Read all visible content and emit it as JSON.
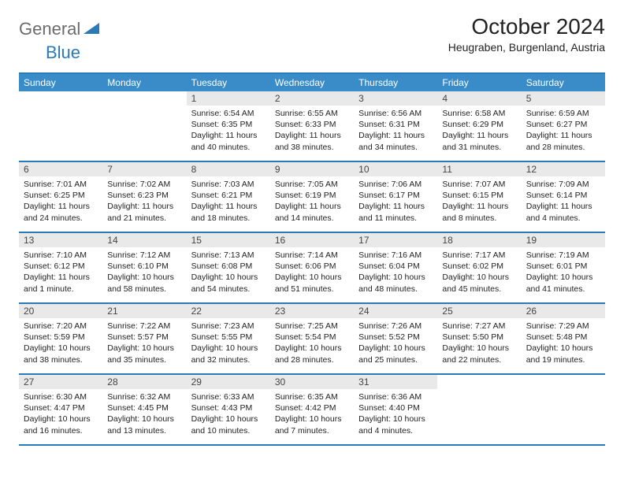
{
  "logo": {
    "word1": "General",
    "word2": "Blue",
    "text_gray": "#6b6b6b",
    "text_blue": "#2a7ab8"
  },
  "title": "October 2024",
  "location": "Heugraben, Burgenland, Austria",
  "colors": {
    "header_bg": "#3a8cc9",
    "border": "#2a7ab8",
    "date_bg": "#e9e9e9",
    "page_bg": "#ffffff"
  },
  "day_names": [
    "Sunday",
    "Monday",
    "Tuesday",
    "Wednesday",
    "Thursday",
    "Friday",
    "Saturday"
  ],
  "weeks": [
    [
      null,
      null,
      {
        "d": "1",
        "sr": "Sunrise: 6:54 AM",
        "ss": "Sunset: 6:35 PM",
        "dl": "Daylight: 11 hours and 40 minutes."
      },
      {
        "d": "2",
        "sr": "Sunrise: 6:55 AM",
        "ss": "Sunset: 6:33 PM",
        "dl": "Daylight: 11 hours and 38 minutes."
      },
      {
        "d": "3",
        "sr": "Sunrise: 6:56 AM",
        "ss": "Sunset: 6:31 PM",
        "dl": "Daylight: 11 hours and 34 minutes."
      },
      {
        "d": "4",
        "sr": "Sunrise: 6:58 AM",
        "ss": "Sunset: 6:29 PM",
        "dl": "Daylight: 11 hours and 31 minutes."
      },
      {
        "d": "5",
        "sr": "Sunrise: 6:59 AM",
        "ss": "Sunset: 6:27 PM",
        "dl": "Daylight: 11 hours and 28 minutes."
      }
    ],
    [
      {
        "d": "6",
        "sr": "Sunrise: 7:01 AM",
        "ss": "Sunset: 6:25 PM",
        "dl": "Daylight: 11 hours and 24 minutes."
      },
      {
        "d": "7",
        "sr": "Sunrise: 7:02 AM",
        "ss": "Sunset: 6:23 PM",
        "dl": "Daylight: 11 hours and 21 minutes."
      },
      {
        "d": "8",
        "sr": "Sunrise: 7:03 AM",
        "ss": "Sunset: 6:21 PM",
        "dl": "Daylight: 11 hours and 18 minutes."
      },
      {
        "d": "9",
        "sr": "Sunrise: 7:05 AM",
        "ss": "Sunset: 6:19 PM",
        "dl": "Daylight: 11 hours and 14 minutes."
      },
      {
        "d": "10",
        "sr": "Sunrise: 7:06 AM",
        "ss": "Sunset: 6:17 PM",
        "dl": "Daylight: 11 hours and 11 minutes."
      },
      {
        "d": "11",
        "sr": "Sunrise: 7:07 AM",
        "ss": "Sunset: 6:15 PM",
        "dl": "Daylight: 11 hours and 8 minutes."
      },
      {
        "d": "12",
        "sr": "Sunrise: 7:09 AM",
        "ss": "Sunset: 6:14 PM",
        "dl": "Daylight: 11 hours and 4 minutes."
      }
    ],
    [
      {
        "d": "13",
        "sr": "Sunrise: 7:10 AM",
        "ss": "Sunset: 6:12 PM",
        "dl": "Daylight: 11 hours and 1 minute."
      },
      {
        "d": "14",
        "sr": "Sunrise: 7:12 AM",
        "ss": "Sunset: 6:10 PM",
        "dl": "Daylight: 10 hours and 58 minutes."
      },
      {
        "d": "15",
        "sr": "Sunrise: 7:13 AM",
        "ss": "Sunset: 6:08 PM",
        "dl": "Daylight: 10 hours and 54 minutes."
      },
      {
        "d": "16",
        "sr": "Sunrise: 7:14 AM",
        "ss": "Sunset: 6:06 PM",
        "dl": "Daylight: 10 hours and 51 minutes."
      },
      {
        "d": "17",
        "sr": "Sunrise: 7:16 AM",
        "ss": "Sunset: 6:04 PM",
        "dl": "Daylight: 10 hours and 48 minutes."
      },
      {
        "d": "18",
        "sr": "Sunrise: 7:17 AM",
        "ss": "Sunset: 6:02 PM",
        "dl": "Daylight: 10 hours and 45 minutes."
      },
      {
        "d": "19",
        "sr": "Sunrise: 7:19 AM",
        "ss": "Sunset: 6:01 PM",
        "dl": "Daylight: 10 hours and 41 minutes."
      }
    ],
    [
      {
        "d": "20",
        "sr": "Sunrise: 7:20 AM",
        "ss": "Sunset: 5:59 PM",
        "dl": "Daylight: 10 hours and 38 minutes."
      },
      {
        "d": "21",
        "sr": "Sunrise: 7:22 AM",
        "ss": "Sunset: 5:57 PM",
        "dl": "Daylight: 10 hours and 35 minutes."
      },
      {
        "d": "22",
        "sr": "Sunrise: 7:23 AM",
        "ss": "Sunset: 5:55 PM",
        "dl": "Daylight: 10 hours and 32 minutes."
      },
      {
        "d": "23",
        "sr": "Sunrise: 7:25 AM",
        "ss": "Sunset: 5:54 PM",
        "dl": "Daylight: 10 hours and 28 minutes."
      },
      {
        "d": "24",
        "sr": "Sunrise: 7:26 AM",
        "ss": "Sunset: 5:52 PM",
        "dl": "Daylight: 10 hours and 25 minutes."
      },
      {
        "d": "25",
        "sr": "Sunrise: 7:27 AM",
        "ss": "Sunset: 5:50 PM",
        "dl": "Daylight: 10 hours and 22 minutes."
      },
      {
        "d": "26",
        "sr": "Sunrise: 7:29 AM",
        "ss": "Sunset: 5:48 PM",
        "dl": "Daylight: 10 hours and 19 minutes."
      }
    ],
    [
      {
        "d": "27",
        "sr": "Sunrise: 6:30 AM",
        "ss": "Sunset: 4:47 PM",
        "dl": "Daylight: 10 hours and 16 minutes."
      },
      {
        "d": "28",
        "sr": "Sunrise: 6:32 AM",
        "ss": "Sunset: 4:45 PM",
        "dl": "Daylight: 10 hours and 13 minutes."
      },
      {
        "d": "29",
        "sr": "Sunrise: 6:33 AM",
        "ss": "Sunset: 4:43 PM",
        "dl": "Daylight: 10 hours and 10 minutes."
      },
      {
        "d": "30",
        "sr": "Sunrise: 6:35 AM",
        "ss": "Sunset: 4:42 PM",
        "dl": "Daylight: 10 hours and 7 minutes."
      },
      {
        "d": "31",
        "sr": "Sunrise: 6:36 AM",
        "ss": "Sunset: 4:40 PM",
        "dl": "Daylight: 10 hours and 4 minutes."
      },
      null,
      null
    ]
  ]
}
